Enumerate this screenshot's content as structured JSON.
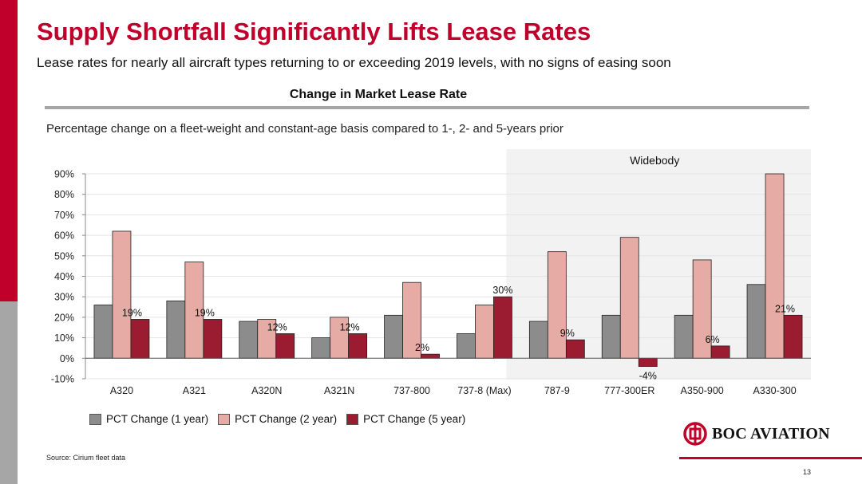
{
  "slide": {
    "title": "Supply Shortfall Significantly Lifts Lease Rates",
    "subtitle": "Lease rates for nearly all aircraft types returning to or exceeding 2019 levels, with no signs of easing soon",
    "chart_heading": "Change in Market Lease Rate",
    "chart_subheading": "Percentage change on a fleet-weight and constant-age basis compared to 1-, 2- and 5-years prior",
    "source": "Source: Cirium fleet data",
    "page_number": "13",
    "logo_text": "BOC AVIATION"
  },
  "colors": {
    "brand_red": "#c0002a",
    "series_1": "#8c8c8c",
    "series_2": "#e6aba4",
    "series_3": "#9b1b30",
    "highlight_bg": "#f2f2f2"
  },
  "chart_data": {
    "type": "bar",
    "categories": [
      "A320",
      "A321",
      "A320N",
      "A321N",
      "737-800",
      "737-8 (Max)",
      "787-9",
      "777-300ER",
      "A350-900",
      "A330-300"
    ],
    "series": [
      {
        "name": "PCT Change (1 year)",
        "values": [
          26,
          28,
          18,
          10,
          21,
          12,
          18,
          21,
          21,
          36
        ]
      },
      {
        "name": "PCT Change (2 year)",
        "values": [
          62,
          47,
          19,
          20,
          37,
          26,
          52,
          59,
          48,
          90
        ]
      },
      {
        "name": "PCT Change (5 year)",
        "values": [
          19,
          19,
          12,
          12,
          2,
          30,
          9,
          -4,
          6,
          21
        ]
      }
    ],
    "data_labels": [
      "19%",
      "19%",
      "12%",
      "12%",
      "2%",
      "30%",
      "9%",
      "-4%",
      "6%",
      "21%"
    ],
    "y_ticks": [
      "-10%",
      "0%",
      "10%",
      "20%",
      "30%",
      "40%",
      "50%",
      "60%",
      "70%",
      "80%",
      "90%"
    ],
    "ylim": [
      -10,
      90
    ],
    "highlight_region": {
      "label": "Widebody",
      "from_category": "787-9",
      "to_category": "A330-300"
    },
    "legend_position": "bottom-left",
    "grid": true
  }
}
